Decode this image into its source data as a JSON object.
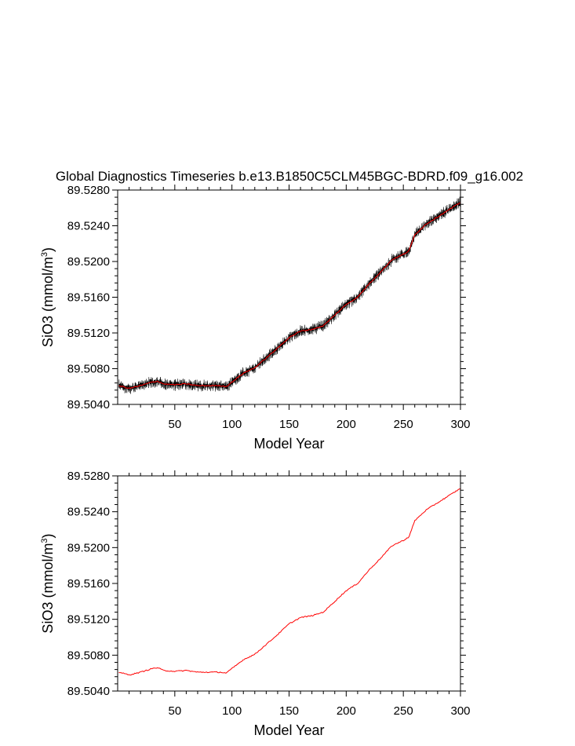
{
  "title": "Global Diagnostics Timeseries b.e13.B1850C5CLM45BGC-BDRD.f09_g16.002",
  "colors": {
    "monthly": "#000000",
    "annual": "#ff0000",
    "axis": "#000000",
    "background": "#ffffff"
  },
  "chart_data": [
    {
      "type": "line",
      "panel": "top",
      "xlabel": "Model Year",
      "ylabel": "SiO3 (mmol/m",
      "ylabel_sup": "3",
      "ylabel_close": ")",
      "xlim": [
        0,
        300
      ],
      "ylim": [
        89.504,
        89.528
      ],
      "xticks": [
        50,
        100,
        150,
        200,
        250,
        300
      ],
      "yticks": [
        "89.5040",
        "89.5080",
        "89.5120",
        "89.5160",
        "89.5200",
        "89.5240",
        "89.5280"
      ],
      "grid": false,
      "series": [
        {
          "style": "monthly",
          "color": "#000000",
          "band": 0.0007,
          "x": [
            1,
            10,
            20,
            30,
            35,
            40,
            50,
            60,
            70,
            80,
            90,
            95,
            100,
            110,
            120,
            130,
            140,
            150,
            160,
            170,
            175,
            180,
            190,
            200,
            210,
            220,
            230,
            240,
            250,
            255,
            260,
            270,
            280,
            290,
            300
          ],
          "y": [
            89.5061,
            89.5058,
            89.5061,
            89.5065,
            89.5066,
            89.5063,
            89.5062,
            89.5063,
            89.5061,
            89.5061,
            89.5061,
            89.506,
            89.5065,
            89.5075,
            89.5081,
            89.5092,
            89.5103,
            89.5115,
            89.5122,
            89.5124,
            89.5126,
            89.5128,
            89.514,
            89.5152,
            89.516,
            89.5175,
            89.5188,
            89.5202,
            89.5208,
            89.5212,
            89.523,
            89.5242,
            89.525,
            89.5258,
            89.5266
          ]
        },
        {
          "style": "annual",
          "color": "#ff0000",
          "x": [
            1,
            10,
            20,
            30,
            35,
            40,
            50,
            60,
            70,
            80,
            90,
            95,
            100,
            110,
            120,
            130,
            140,
            150,
            160,
            170,
            175,
            180,
            190,
            200,
            210,
            220,
            230,
            240,
            250,
            255,
            260,
            270,
            280,
            290,
            300
          ],
          "y": [
            89.5061,
            89.5058,
            89.5061,
            89.5065,
            89.5066,
            89.5063,
            89.5062,
            89.5063,
            89.5061,
            89.5061,
            89.5061,
            89.506,
            89.5065,
            89.5075,
            89.5081,
            89.5092,
            89.5103,
            89.5115,
            89.5122,
            89.5124,
            89.5126,
            89.5128,
            89.514,
            89.5152,
            89.516,
            89.5175,
            89.5188,
            89.5202,
            89.5208,
            89.5212,
            89.523,
            89.5242,
            89.525,
            89.5258,
            89.5266
          ]
        }
      ]
    },
    {
      "type": "line",
      "panel": "bottom",
      "xlabel": "Model Year",
      "ylabel": "SiO3 (mmol/m",
      "ylabel_sup": "3",
      "ylabel_close": ")",
      "xlim": [
        0,
        300
      ],
      "ylim": [
        89.504,
        89.528
      ],
      "xticks": [
        50,
        100,
        150,
        200,
        250,
        300
      ],
      "yticks": [
        "89.5040",
        "89.5080",
        "89.5120",
        "89.5160",
        "89.5200",
        "89.5240",
        "89.5280"
      ],
      "grid": false,
      "series": [
        {
          "style": "annual",
          "color": "#ff0000",
          "x": [
            1,
            10,
            20,
            30,
            35,
            40,
            50,
            60,
            70,
            80,
            90,
            95,
            100,
            110,
            120,
            130,
            140,
            150,
            160,
            170,
            175,
            180,
            190,
            200,
            210,
            220,
            230,
            240,
            250,
            255,
            260,
            270,
            280,
            290,
            300
          ],
          "y": [
            89.5061,
            89.5058,
            89.5061,
            89.5065,
            89.5066,
            89.5063,
            89.5062,
            89.5063,
            89.5061,
            89.5061,
            89.5061,
            89.506,
            89.5065,
            89.5075,
            89.5081,
            89.5092,
            89.5103,
            89.5115,
            89.5122,
            89.5124,
            89.5126,
            89.5128,
            89.514,
            89.5152,
            89.516,
            89.5175,
            89.5188,
            89.5202,
            89.5208,
            89.5212,
            89.523,
            89.5242,
            89.525,
            89.5258,
            89.5266
          ]
        }
      ]
    }
  ]
}
